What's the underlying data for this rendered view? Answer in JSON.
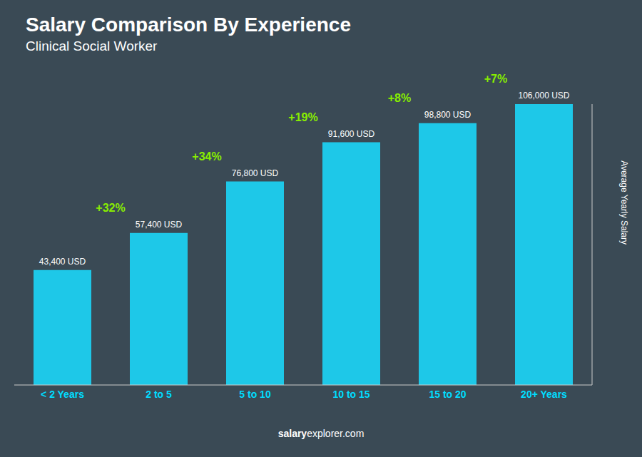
{
  "chart_data": {
    "type": "bar",
    "title": "Salary Comparison By Experience",
    "subtitle": "Clinical Social Worker",
    "ylabel": "Average Yearly Salary",
    "categories": [
      "< 2 Years",
      "2 to 5",
      "5 to 10",
      "10 to 15",
      "15 to 20",
      "20+ Years"
    ],
    "values": [
      43400,
      57400,
      76800,
      91600,
      98800,
      106000
    ],
    "value_labels": [
      "43,400 USD",
      "57,400 USD",
      "76,800 USD",
      "91,600 USD",
      "98,800 USD",
      "106,000 USD"
    ],
    "data_labels": true,
    "color": "#1EC8E8",
    "annotations": [
      "+32%",
      "+34%",
      "+19%",
      "+8%",
      "+7%"
    ],
    "footer": [
      "salary",
      "explorer.com"
    ],
    "ylim": [
      0,
      106000
    ],
    "tick_labels": "x",
    "grid": false
  }
}
